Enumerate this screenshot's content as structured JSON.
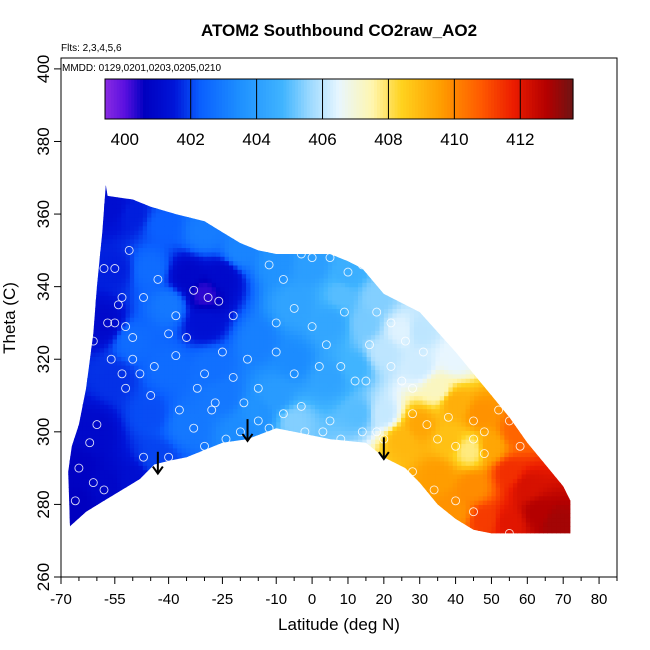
{
  "chart_data": {
    "type": "heatmap",
    "title": "ATOM2 Southbound CO2raw_AO2",
    "flights_note": "Flts: 2,3,4,5,6",
    "dates_note": "MMDD: 0129,0201,0203,0205,0210",
    "xlabel": "Latitude (deg N)",
    "ylabel": "Theta (C)",
    "xlim": [
      -70,
      85
    ],
    "ylim": [
      260,
      403
    ],
    "x_ticks": [
      -70,
      -55,
      -40,
      -25,
      -10,
      0,
      10,
      20,
      30,
      40,
      50,
      60,
      70,
      80
    ],
    "x_minor_ticks": [
      -65,
      -60,
      -50,
      -45,
      -35,
      -30,
      -20,
      -15,
      -5,
      5,
      15,
      25,
      35,
      45,
      55,
      65,
      75,
      85
    ],
    "y_ticks": [
      260,
      280,
      300,
      320,
      340,
      360,
      380,
      400
    ],
    "colorbar": {
      "min": 399.4,
      "max": 413.6,
      "tick_labels": [
        "400",
        "402",
        "404",
        "406",
        "408",
        "410",
        "412"
      ],
      "tick_values": [
        400,
        402,
        404,
        406,
        408,
        410,
        412
      ],
      "line_values": [
        402,
        404,
        406,
        408,
        410,
        412
      ],
      "stops": [
        {
          "value": 399.4,
          "color": "#8a2be2"
        },
        {
          "value": 400.0,
          "color": "#5a10e0"
        },
        {
          "value": 400.6,
          "color": "#0000c0"
        },
        {
          "value": 401.5,
          "color": "#0015d8"
        },
        {
          "value": 402.3,
          "color": "#0a60ff"
        },
        {
          "value": 403.5,
          "color": "#1e90ff"
        },
        {
          "value": 404.8,
          "color": "#40b4ff"
        },
        {
          "value": 405.6,
          "color": "#9ad8ff"
        },
        {
          "value": 406.5,
          "color": "#e8f6ff"
        },
        {
          "value": 407.5,
          "color": "#fff6b0"
        },
        {
          "value": 408.4,
          "color": "#ffd21e"
        },
        {
          "value": 409.6,
          "color": "#ff9d00"
        },
        {
          "value": 410.8,
          "color": "#ff5a00"
        },
        {
          "value": 411.8,
          "color": "#ec1c00"
        },
        {
          "value": 412.8,
          "color": "#b40000"
        },
        {
          "value": 413.6,
          "color": "#6e1414"
        }
      ]
    },
    "coverage": {
      "top": [
        [
          -57.5,
          368
        ],
        [
          -57,
          365
        ],
        [
          -50,
          364
        ],
        [
          -45,
          362
        ],
        [
          -38,
          360
        ],
        [
          -30,
          358
        ],
        [
          -25,
          355
        ],
        [
          -20,
          352
        ],
        [
          -15,
          350
        ],
        [
          -10,
          349
        ],
        [
          0,
          349
        ],
        [
          5,
          349
        ],
        [
          10,
          347
        ],
        [
          14,
          345
        ],
        [
          20,
          338
        ],
        [
          30,
          333
        ],
        [
          40,
          322
        ],
        [
          45,
          316
        ],
        [
          50,
          310
        ],
        [
          55,
          304
        ],
        [
          60,
          297
        ],
        [
          65,
          291
        ],
        [
          70,
          285
        ],
        [
          72,
          281
        ]
      ],
      "bottom": [
        [
          -68,
          289
        ],
        [
          -67.5,
          274
        ],
        [
          -63,
          278
        ],
        [
          -58,
          281
        ],
        [
          -53,
          284
        ],
        [
          -48,
          287
        ],
        [
          -44,
          291
        ],
        [
          -40,
          292
        ],
        [
          -35,
          293
        ],
        [
          -30,
          295
        ],
        [
          -25,
          297
        ],
        [
          -18,
          298
        ],
        [
          -10,
          301
        ],
        [
          -5,
          300
        ],
        [
          5,
          298
        ],
        [
          15,
          297
        ],
        [
          20,
          293
        ],
        [
          26,
          290
        ],
        [
          30,
          286
        ],
        [
          35,
          280
        ],
        [
          40,
          276
        ],
        [
          45,
          273
        ],
        [
          50,
          272
        ],
        [
          57,
          272
        ],
        [
          62,
          272
        ],
        [
          72,
          272
        ]
      ],
      "left": [
        [
          -68,
          289
        ],
        [
          -67,
          296
        ],
        [
          -65,
          302
        ],
        [
          -63,
          312
        ],
        [
          -61,
          327
        ],
        [
          -60,
          340
        ],
        [
          -58.5,
          355
        ],
        [
          -57.5,
          368
        ]
      ]
    },
    "field_samples": [
      {
        "lat": -61,
        "theta": 300,
        "co2": 401.0
      },
      {
        "lat": -65,
        "theta": 290,
        "co2": 400.7
      },
      {
        "lat": -66,
        "theta": 280,
        "co2": 400.6
      },
      {
        "lat": -57,
        "theta": 285,
        "co2": 400.9
      },
      {
        "lat": -50,
        "theta": 286,
        "co2": 401.2
      },
      {
        "lat": -43,
        "theta": 293,
        "co2": 402.0
      },
      {
        "lat": -56,
        "theta": 362,
        "co2": 401.2
      },
      {
        "lat": -50,
        "theta": 360,
        "co2": 401.6
      },
      {
        "lat": -42,
        "theta": 357,
        "co2": 402.3
      },
      {
        "lat": -30,
        "theta": 355,
        "co2": 403.0
      },
      {
        "lat": -20,
        "theta": 350,
        "co2": 403.2
      },
      {
        "lat": -10,
        "theta": 347,
        "co2": 403.6
      },
      {
        "lat": 0,
        "theta": 346,
        "co2": 404.0
      },
      {
        "lat": 10,
        "theta": 344,
        "co2": 404.6
      },
      {
        "lat": 18,
        "theta": 337,
        "co2": 405.4
      },
      {
        "lat": 30,
        "theta": 328,
        "co2": 406.0
      },
      {
        "lat": 40,
        "theta": 320,
        "co2": 406.5
      },
      {
        "lat": -55,
        "theta": 345,
        "co2": 401.6
      },
      {
        "lat": -58,
        "theta": 330,
        "co2": 401.0
      },
      {
        "lat": -55,
        "theta": 315,
        "co2": 401.8
      },
      {
        "lat": -50,
        "theta": 325,
        "co2": 402.6
      },
      {
        "lat": -40,
        "theta": 335,
        "co2": 402.9
      },
      {
        "lat": -45,
        "theta": 345,
        "co2": 402.6
      },
      {
        "lat": -30,
        "theta": 338,
        "co2": 400.3
      },
      {
        "lat": -35,
        "theta": 343,
        "co2": 400.9
      },
      {
        "lat": -25,
        "theta": 343,
        "co2": 401.0
      },
      {
        "lat": -30,
        "theta": 330,
        "co2": 401.3
      },
      {
        "lat": -28,
        "theta": 318,
        "co2": 402.7
      },
      {
        "lat": -40,
        "theta": 318,
        "co2": 402.6
      },
      {
        "lat": -45,
        "theta": 305,
        "co2": 402.1
      },
      {
        "lat": -35,
        "theta": 302,
        "co2": 402.9
      },
      {
        "lat": -25,
        "theta": 310,
        "co2": 402.9
      },
      {
        "lat": -15,
        "theta": 325,
        "co2": 403.1
      },
      {
        "lat": -15,
        "theta": 305,
        "co2": 403.6
      },
      {
        "lat": -20,
        "theta": 300,
        "co2": 403.4
      },
      {
        "lat": -5,
        "theta": 320,
        "co2": 403.4
      },
      {
        "lat": -5,
        "theta": 335,
        "co2": 404.2
      },
      {
        "lat": -10,
        "theta": 310,
        "co2": 403.9
      },
      {
        "lat": -5,
        "theta": 303,
        "co2": 405.4
      },
      {
        "lat": 5,
        "theta": 330,
        "co2": 404.3
      },
      {
        "lat": 5,
        "theta": 315,
        "co2": 404.2
      },
      {
        "lat": 8,
        "theta": 338,
        "co2": 405.0
      },
      {
        "lat": 15,
        "theta": 330,
        "co2": 405.3
      },
      {
        "lat": 12,
        "theta": 318,
        "co2": 404.8
      },
      {
        "lat": 13,
        "theta": 305,
        "co2": 405.0
      },
      {
        "lat": 20,
        "theta": 305,
        "co2": 406.1
      },
      {
        "lat": 20,
        "theta": 322,
        "co2": 406.0
      },
      {
        "lat": 25,
        "theta": 328,
        "co2": 406.4
      },
      {
        "lat": 30,
        "theta": 318,
        "co2": 406.2
      },
      {
        "lat": 35,
        "theta": 312,
        "co2": 407.3
      },
      {
        "lat": 25,
        "theta": 298,
        "co2": 409.0
      },
      {
        "lat": 30,
        "theta": 302,
        "co2": 409.4
      },
      {
        "lat": 40,
        "theta": 308,
        "co2": 409.2
      },
      {
        "lat": 38,
        "theta": 298,
        "co2": 408.8
      },
      {
        "lat": 47,
        "theta": 305,
        "co2": 409.8
      },
      {
        "lat": 50,
        "theta": 296,
        "co2": 409.4
      },
      {
        "lat": 44,
        "theta": 295,
        "co2": 407.8
      },
      {
        "lat": 35,
        "theta": 288,
        "co2": 409.6
      },
      {
        "lat": 45,
        "theta": 285,
        "co2": 409.9
      },
      {
        "lat": 55,
        "theta": 289,
        "co2": 411.5
      },
      {
        "lat": 60,
        "theta": 285,
        "co2": 412.2
      },
      {
        "lat": 63,
        "theta": 278,
        "co2": 412.8
      },
      {
        "lat": 55,
        "theta": 275,
        "co2": 412.0
      },
      {
        "lat": 48,
        "theta": 276,
        "co2": 411.3
      },
      {
        "lat": 40,
        "theta": 278,
        "co2": 409.8
      },
      {
        "lat": 68,
        "theta": 275,
        "co2": 413.0
      },
      {
        "lat": 57,
        "theta": 300,
        "co2": 410.6
      }
    ],
    "observations": [
      [
        -65,
        324
      ],
      [
        -61,
        325
      ],
      [
        -57,
        330
      ],
      [
        -54,
        335
      ],
      [
        -55,
        330
      ],
      [
        -53,
        337
      ],
      [
        -55,
        345
      ],
      [
        -58,
        345
      ],
      [
        -51,
        350
      ],
      [
        -52,
        329
      ],
      [
        -50,
        326
      ],
      [
        -50,
        320
      ],
      [
        -53,
        316
      ],
      [
        -52,
        312
      ],
      [
        -48,
        316
      ],
      [
        -45,
        310
      ],
      [
        -44,
        318
      ],
      [
        -40,
        327
      ],
      [
        -38,
        332
      ],
      [
        -35,
        326
      ],
      [
        -37,
        306
      ],
      [
        -32,
        312
      ],
      [
        -30,
        316
      ],
      [
        -28,
        306
      ],
      [
        -25,
        322
      ],
      [
        -22,
        332
      ],
      [
        -20,
        300
      ],
      [
        -29,
        337
      ],
      [
        -22,
        315
      ],
      [
        -15,
        312
      ],
      [
        -18,
        320
      ],
      [
        -12,
        346
      ],
      [
        -8,
        342
      ],
      [
        -5,
        334
      ],
      [
        -3,
        349
      ],
      [
        0,
        348
      ],
      [
        5,
        348
      ],
      [
        10,
        344
      ],
      [
        12,
        349
      ],
      [
        14,
        346
      ],
      [
        -10,
        330
      ],
      [
        -5,
        316
      ],
      [
        -8,
        305
      ],
      [
        -3,
        307
      ],
      [
        2,
        318
      ],
      [
        8,
        318
      ],
      [
        12,
        314
      ],
      [
        15,
        314
      ],
      [
        5,
        303
      ],
      [
        3,
        300
      ],
      [
        14,
        300
      ],
      [
        18,
        300
      ],
      [
        20,
        298
      ],
      [
        22,
        318
      ],
      [
        25,
        314
      ],
      [
        28,
        312
      ],
      [
        18,
        333
      ],
      [
        22,
        330
      ],
      [
        26,
        325
      ],
      [
        28,
        305
      ],
      [
        32,
        302
      ],
      [
        35,
        298
      ],
      [
        38,
        304
      ],
      [
        40,
        296
      ],
      [
        45,
        303
      ],
      [
        48,
        300
      ],
      [
        48,
        294
      ],
      [
        52,
        306
      ],
      [
        55,
        303
      ],
      [
        58,
        296
      ],
      [
        -62,
        297
      ],
      [
        -65,
        290
      ],
      [
        -66,
        281
      ],
      [
        -61,
        286
      ],
      [
        -58,
        284
      ],
      [
        -55,
        281
      ],
      [
        -47,
        293
      ],
      [
        -40,
        293
      ],
      [
        -30,
        296
      ],
      [
        -24,
        298
      ],
      [
        -15,
        303
      ],
      [
        -12,
        301
      ],
      [
        -2,
        300
      ],
      [
        8,
        298
      ],
      [
        28,
        289
      ],
      [
        34,
        284
      ],
      [
        40,
        281
      ],
      [
        45,
        278
      ],
      [
        55,
        272
      ],
      [
        -60,
        302
      ],
      [
        -56,
        320
      ],
      [
        -47,
        337
      ],
      [
        -43,
        342
      ],
      [
        -33,
        339
      ],
      [
        -26,
        336
      ],
      [
        -38,
        321
      ],
      [
        -27,
        308
      ],
      [
        -33,
        301
      ],
      [
        -19,
        308
      ],
      [
        -10,
        322
      ],
      [
        0,
        329
      ],
      [
        4,
        324
      ],
      [
        9,
        333
      ],
      [
        16,
        324
      ],
      [
        31,
        322
      ],
      [
        45,
        298
      ]
    ],
    "arrows": [
      {
        "lat": -43,
        "theta_top": 294.5,
        "theta_tip": 288.5
      },
      {
        "lat": -18,
        "theta_top": 303.5,
        "theta_tip": 297.5
      },
      {
        "lat": 20,
        "theta_top": 298.5,
        "theta_tip": 292.5
      }
    ]
  }
}
